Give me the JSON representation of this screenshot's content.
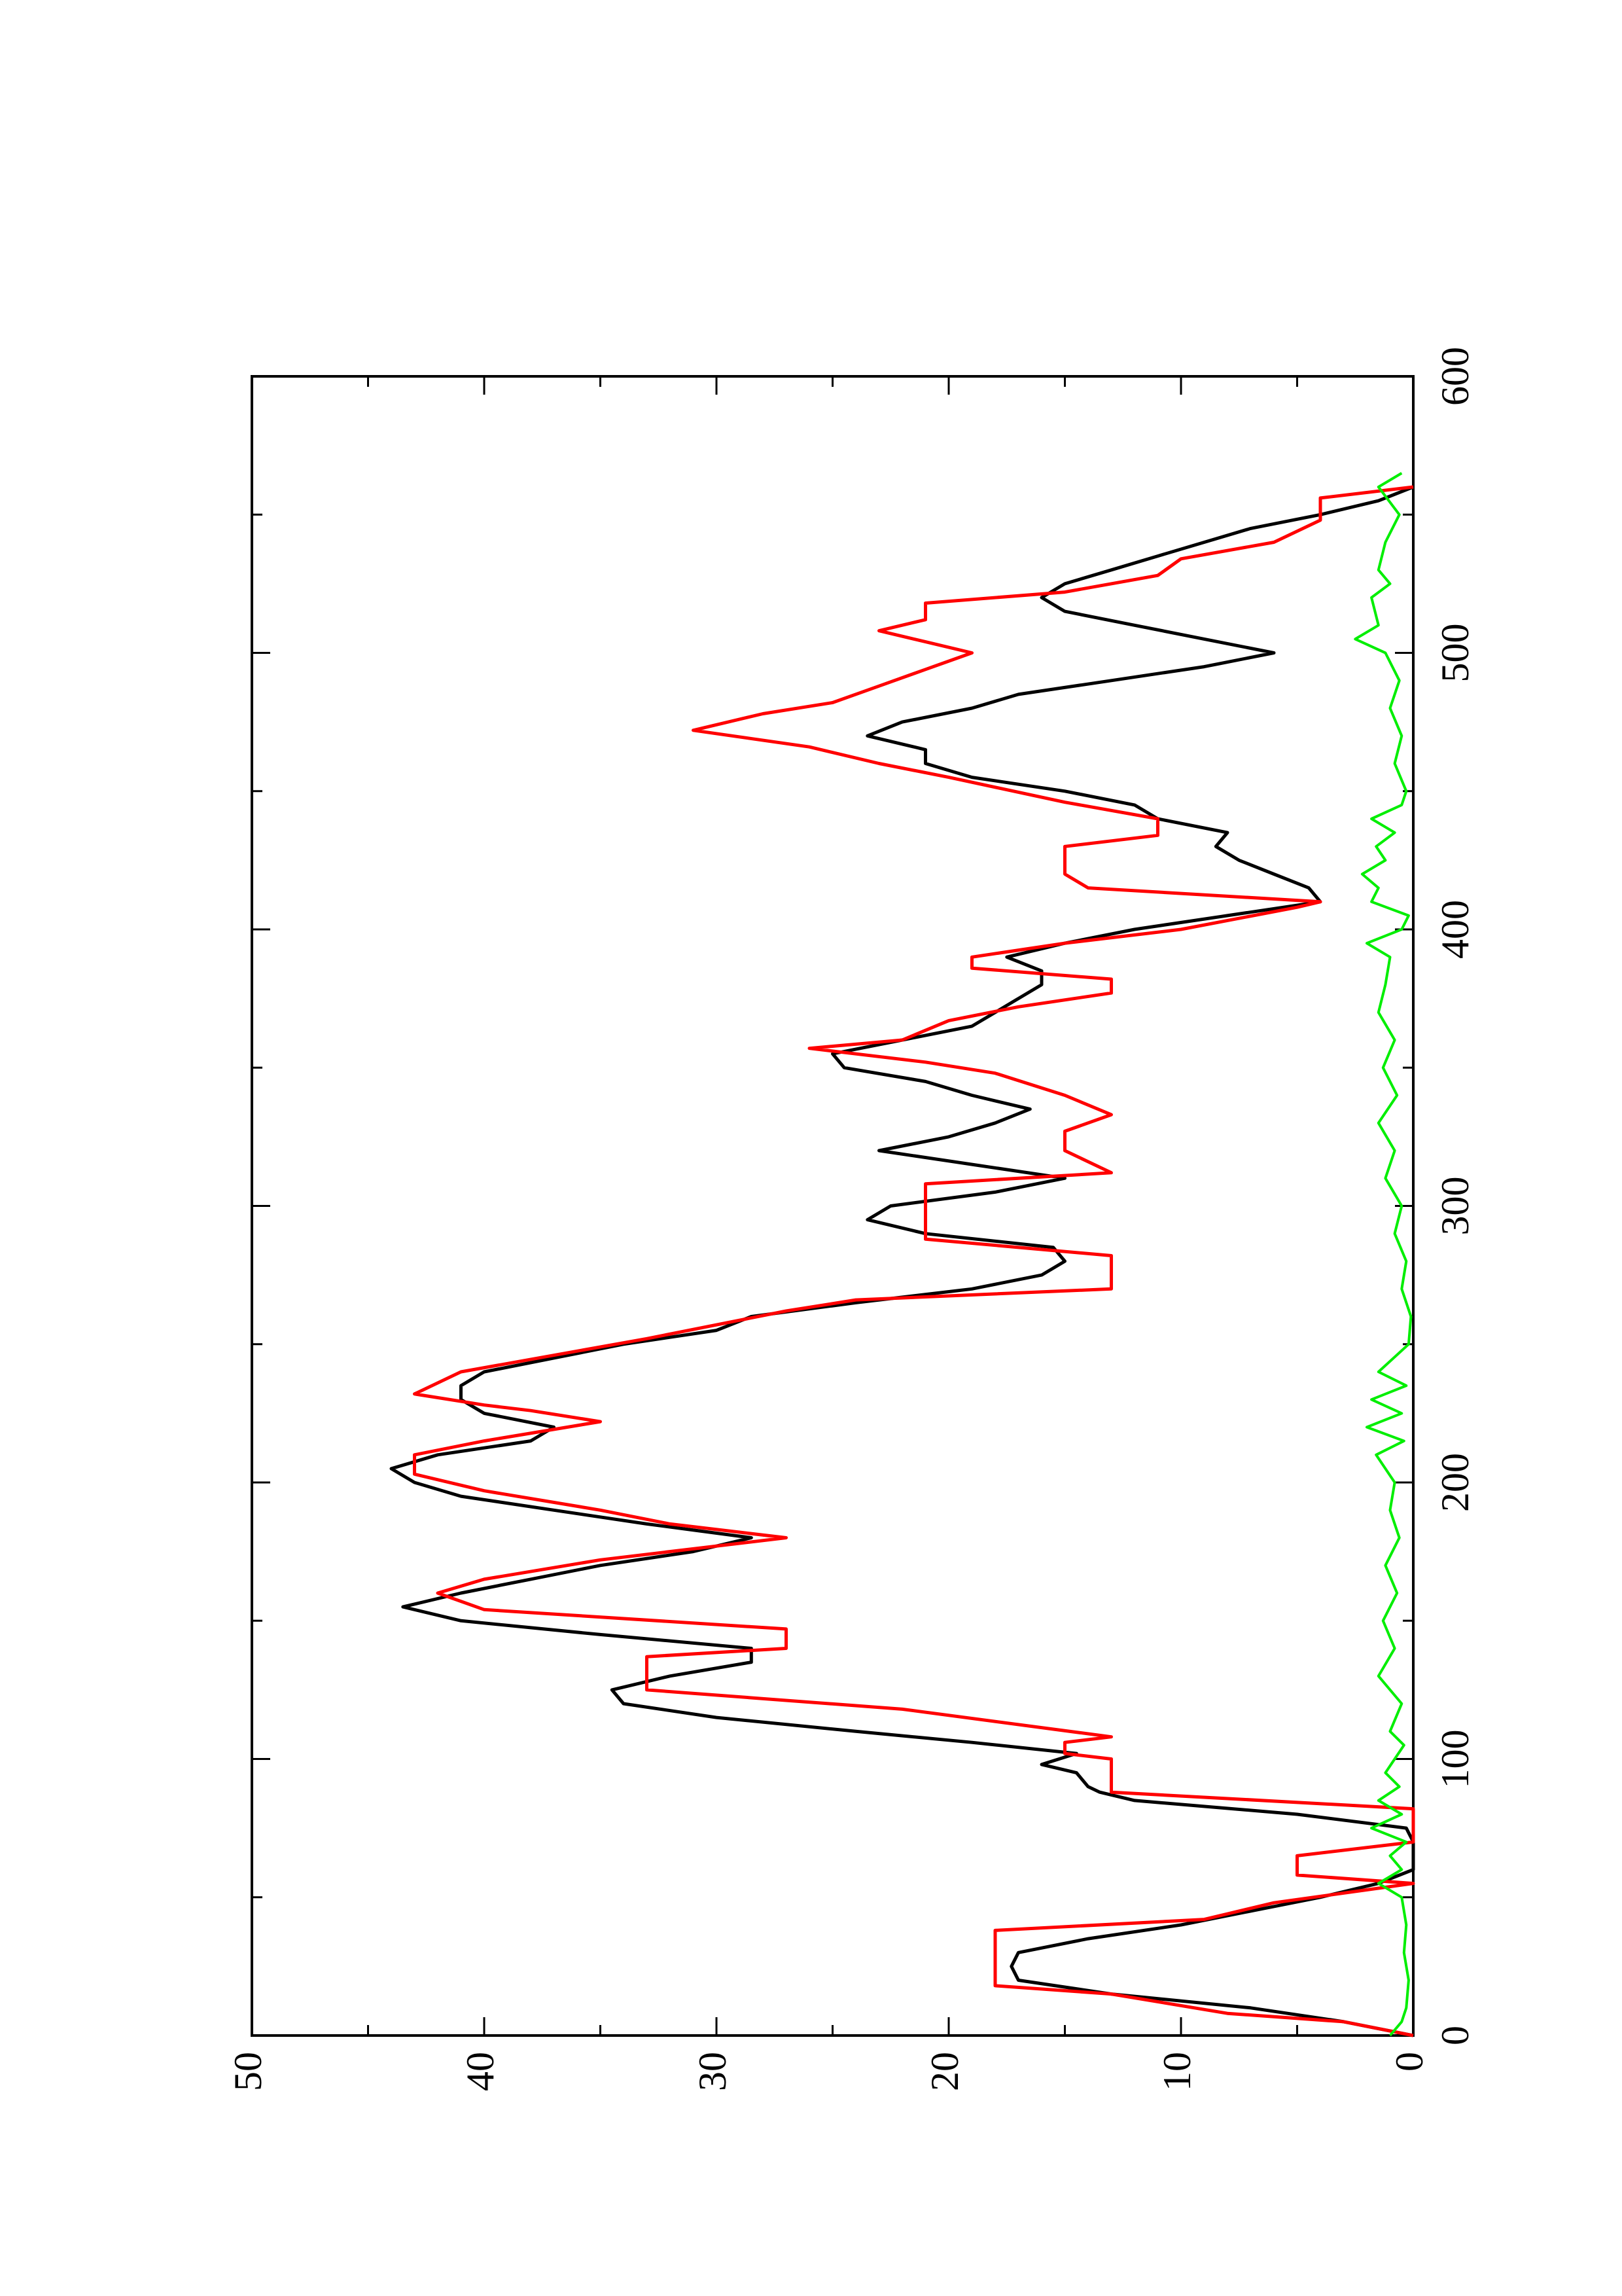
{
  "chart_data": {
    "type": "line",
    "orientation": "rotated 90 degrees counter-clockwise (x axis runs bottom-to-top along the right side)",
    "title": "",
    "xlabel": "",
    "ylabel": "",
    "xlim": [
      0,
      600
    ],
    "ylim": [
      0,
      50
    ],
    "x_ticks": [
      0,
      100,
      200,
      300,
      400,
      500,
      600
    ],
    "x_tick_labels": [
      "0",
      "100",
      "200",
      "300",
      "400",
      "500",
      "600"
    ],
    "y_ticks": [
      0,
      10,
      20,
      30,
      40,
      50
    ],
    "y_tick_labels": [
      "0",
      "10",
      "20",
      "30",
      "40",
      "50"
    ],
    "grid": false,
    "legend": "none",
    "series": [
      {
        "color": "#000000",
        "style": "smooth",
        "points": [
          [
            0,
            0
          ],
          [
            5,
            3
          ],
          [
            10,
            7
          ],
          [
            15,
            13
          ],
          [
            20,
            17
          ],
          [
            25,
            17.3
          ],
          [
            30,
            17
          ],
          [
            35,
            14
          ],
          [
            40,
            10
          ],
          [
            45,
            7
          ],
          [
            50,
            4
          ],
          [
            55,
            1.5
          ],
          [
            60,
            0
          ],
          [
            65,
            0
          ],
          [
            70,
            0
          ],
          [
            75,
            0.3
          ],
          [
            80,
            5
          ],
          [
            85,
            12
          ],
          [
            88,
            13.5
          ],
          [
            90,
            14
          ],
          [
            95,
            14.5
          ],
          [
            98,
            16
          ],
          [
            102,
            14.5
          ],
          [
            106,
            19
          ],
          [
            110,
            24
          ],
          [
            115,
            30
          ],
          [
            120,
            34
          ],
          [
            125,
            34.5
          ],
          [
            130,
            32
          ],
          [
            135,
            28.5
          ],
          [
            140,
            28.5
          ],
          [
            145,
            35
          ],
          [
            150,
            41
          ],
          [
            155,
            43.5
          ],
          [
            160,
            41
          ],
          [
            165,
            38
          ],
          [
            170,
            35
          ],
          [
            175,
            31
          ],
          [
            180,
            28.5
          ],
          [
            185,
            33
          ],
          [
            190,
            37
          ],
          [
            195,
            41
          ],
          [
            200,
            43
          ],
          [
            205,
            44
          ],
          [
            210,
            42
          ],
          [
            215,
            38
          ],
          [
            220,
            37
          ],
          [
            225,
            40
          ],
          [
            230,
            41
          ],
          [
            235,
            41
          ],
          [
            240,
            40
          ],
          [
            245,
            37
          ],
          [
            250,
            34
          ],
          [
            255,
            30
          ],
          [
            260,
            28.5
          ],
          [
            265,
            24
          ],
          [
            270,
            19
          ],
          [
            275,
            16
          ],
          [
            280,
            15
          ],
          [
            285,
            15.5
          ],
          [
            290,
            21
          ],
          [
            295,
            23.5
          ],
          [
            300,
            22.5
          ],
          [
            305,
            18
          ],
          [
            310,
            15
          ],
          [
            315,
            19
          ],
          [
            320,
            23
          ],
          [
            325,
            20
          ],
          [
            330,
            18
          ],
          [
            335,
            16.5
          ],
          [
            340,
            19
          ],
          [
            345,
            21
          ],
          [
            350,
            24.5
          ],
          [
            355,
            25
          ],
          [
            360,
            22
          ],
          [
            365,
            19
          ],
          [
            370,
            18
          ],
          [
            375,
            17
          ],
          [
            380,
            16
          ],
          [
            385,
            16
          ],
          [
            390,
            17.5
          ],
          [
            395,
            15
          ],
          [
            400,
            12
          ],
          [
            405,
            8
          ],
          [
            410,
            4
          ],
          [
            415,
            4.5
          ],
          [
            420,
            6
          ],
          [
            425,
            7.5
          ],
          [
            430,
            8.5
          ],
          [
            435,
            8
          ],
          [
            440,
            11
          ],
          [
            445,
            12
          ],
          [
            450,
            15
          ],
          [
            455,
            19
          ],
          [
            460,
            21
          ],
          [
            465,
            21
          ],
          [
            470,
            23.5
          ],
          [
            475,
            22
          ],
          [
            480,
            19
          ],
          [
            485,
            17
          ],
          [
            490,
            13
          ],
          [
            495,
            9
          ],
          [
            500,
            6
          ],
          [
            505,
            9
          ],
          [
            510,
            12
          ],
          [
            515,
            15
          ],
          [
            520,
            16
          ],
          [
            525,
            15
          ],
          [
            530,
            13
          ],
          [
            535,
            11
          ],
          [
            540,
            9
          ],
          [
            545,
            7
          ],
          [
            550,
            4
          ],
          [
            555,
            1.5
          ],
          [
            560,
            0
          ]
        ]
      },
      {
        "color": "#ff0000",
        "style": "step",
        "points": [
          [
            0,
            0
          ],
          [
            5,
            3
          ],
          [
            8,
            8
          ],
          [
            15,
            13
          ],
          [
            18,
            18
          ],
          [
            38,
            18
          ],
          [
            42,
            9
          ],
          [
            48,
            6
          ],
          [
            55,
            0
          ],
          [
            58,
            5
          ],
          [
            65,
            5
          ],
          [
            70,
            0
          ],
          [
            82,
            0
          ],
          [
            88,
            13
          ],
          [
            100,
            13
          ],
          [
            102,
            15
          ],
          [
            106,
            15
          ],
          [
            108,
            13
          ],
          [
            118,
            22
          ],
          [
            125,
            33
          ],
          [
            137,
            33
          ],
          [
            140,
            27
          ],
          [
            147,
            27
          ],
          [
            154,
            40
          ],
          [
            160,
            42
          ],
          [
            165,
            40
          ],
          [
            172,
            35
          ],
          [
            180,
            27
          ],
          [
            185,
            32
          ],
          [
            190,
            35
          ],
          [
            197,
            40
          ],
          [
            203,
            43
          ],
          [
            210,
            43
          ],
          [
            215,
            40
          ],
          [
            222,
            35
          ],
          [
            226,
            38
          ],
          [
            228,
            40
          ],
          [
            232,
            43
          ],
          [
            240,
            41
          ],
          [
            252,
            33
          ],
          [
            262,
            27
          ],
          [
            266,
            24
          ],
          [
            270,
            13
          ],
          [
            282,
            13
          ],
          [
            288,
            21
          ],
          [
            308,
            21
          ],
          [
            312,
            13
          ],
          [
            320,
            15
          ],
          [
            327,
            15
          ],
          [
            333,
            13
          ],
          [
            340,
            15
          ],
          [
            348,
            18
          ],
          [
            352,
            21
          ],
          [
            357,
            26
          ],
          [
            360,
            22
          ],
          [
            367,
            20
          ],
          [
            372,
            17
          ],
          [
            377,
            13
          ],
          [
            382,
            13
          ],
          [
            386,
            19
          ],
          [
            390,
            19
          ],
          [
            395,
            15
          ],
          [
            400,
            10
          ],
          [
            408,
            5
          ],
          [
            410,
            4
          ],
          [
            415,
            14
          ],
          [
            420,
            15
          ],
          [
            430,
            15
          ],
          [
            434,
            11
          ],
          [
            440,
            11
          ],
          [
            446,
            15
          ],
          [
            455,
            20
          ],
          [
            460,
            23
          ],
          [
            466,
            26
          ],
          [
            472,
            31
          ],
          [
            478,
            28
          ],
          [
            482,
            25
          ],
          [
            488,
            23
          ],
          [
            494,
            21
          ],
          [
            500,
            19
          ],
          [
            504,
            21
          ],
          [
            508,
            23
          ],
          [
            512,
            21
          ],
          [
            518,
            21
          ],
          [
            522,
            15
          ],
          [
            528,
            11
          ],
          [
            534,
            10
          ],
          [
            540,
            6
          ],
          [
            548,
            4
          ],
          [
            556,
            4
          ],
          [
            560,
            0
          ]
        ]
      },
      {
        "color": "#00ee00",
        "style": "noisy",
        "points": [
          [
            0,
            1
          ],
          [
            5,
            0.5
          ],
          [
            10,
            0.3
          ],
          [
            20,
            0.2
          ],
          [
            30,
            0.4
          ],
          [
            40,
            0.3
          ],
          [
            50,
            0.5
          ],
          [
            55,
            1.5
          ],
          [
            60,
            0.5
          ],
          [
            65,
            1
          ],
          [
            70,
            0.3
          ],
          [
            75,
            1.8
          ],
          [
            80,
            0.5
          ],
          [
            85,
            1.5
          ],
          [
            90,
            0.6
          ],
          [
            95,
            1.2
          ],
          [
            100,
            0.8
          ],
          [
            105,
            0.4
          ],
          [
            110,
            1
          ],
          [
            120,
            0.5
          ],
          [
            130,
            1.5
          ],
          [
            140,
            0.8
          ],
          [
            150,
            1.3
          ],
          [
            160,
            0.7
          ],
          [
            170,
            1.2
          ],
          [
            180,
            0.6
          ],
          [
            190,
            1
          ],
          [
            200,
            0.8
          ],
          [
            210,
            1.6
          ],
          [
            215,
            0.4
          ],
          [
            220,
            2
          ],
          [
            225,
            0.5
          ],
          [
            230,
            1.8
          ],
          [
            235,
            0.3
          ],
          [
            240,
            1.5
          ],
          [
            250,
            0.2
          ],
          [
            260,
            0.1
          ],
          [
            270,
            0.5
          ],
          [
            280,
            0.3
          ],
          [
            290,
            0.8
          ],
          [
            300,
            0.5
          ],
          [
            310,
            1.2
          ],
          [
            320,
            0.8
          ],
          [
            330,
            1.5
          ],
          [
            340,
            0.7
          ],
          [
            350,
            1.3
          ],
          [
            360,
            0.8
          ],
          [
            370,
            1.5
          ],
          [
            380,
            1.2
          ],
          [
            390,
            1
          ],
          [
            395,
            2
          ],
          [
            400,
            0.5
          ],
          [
            405,
            0.2
          ],
          [
            410,
            1.8
          ],
          [
            415,
            1.5
          ],
          [
            420,
            2.2
          ],
          [
            425,
            1.2
          ],
          [
            430,
            1.6
          ],
          [
            435,
            0.8
          ],
          [
            440,
            1.8
          ],
          [
            445,
            0.5
          ],
          [
            450,
            0.3
          ],
          [
            460,
            0.8
          ],
          [
            470,
            0.5
          ],
          [
            480,
            1
          ],
          [
            490,
            0.6
          ],
          [
            500,
            1.2
          ],
          [
            505,
            2.5
          ],
          [
            510,
            1.5
          ],
          [
            520,
            1.8
          ],
          [
            525,
            1
          ],
          [
            530,
            1.5
          ],
          [
            540,
            1.2
          ],
          [
            550,
            0.6
          ],
          [
            560,
            1.5
          ],
          [
            565,
            0.5
          ]
        ]
      }
    ]
  }
}
